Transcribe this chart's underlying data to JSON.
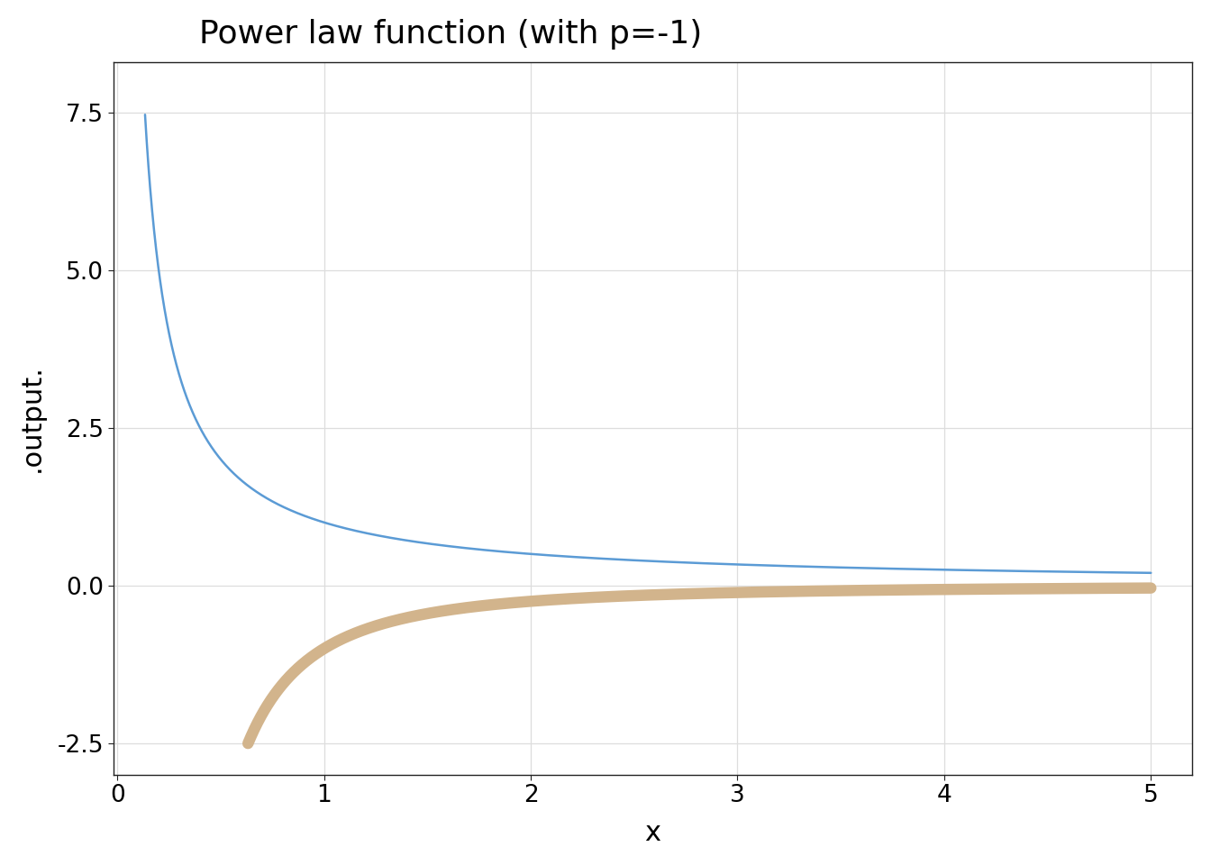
{
  "title": "Power law function (with p=-1)",
  "xlabel": "x",
  "ylabel": ".output.",
  "p": -1,
  "x_start": 0.134,
  "x_end": 5.0,
  "x_slope_start": 0.632,
  "xlim": [
    -0.02,
    5.2
  ],
  "ylim": [
    -3.0,
    8.3
  ],
  "yticks": [
    -2.5,
    0.0,
    2.5,
    5.0,
    7.5
  ],
  "xticks": [
    0,
    1,
    2,
    3,
    4,
    5
  ],
  "blue_color": "#5B9BD5",
  "tan_color": "#D2B48C",
  "blue_linewidth": 1.8,
  "tan_linewidth": 9.0,
  "background_color": "#FFFFFF",
  "plot_bg_color": "#FFFFFF",
  "grid_color": "#DDDDDD",
  "spine_color": "#222222",
  "title_fontsize": 26,
  "label_fontsize": 22,
  "tick_fontsize": 19
}
